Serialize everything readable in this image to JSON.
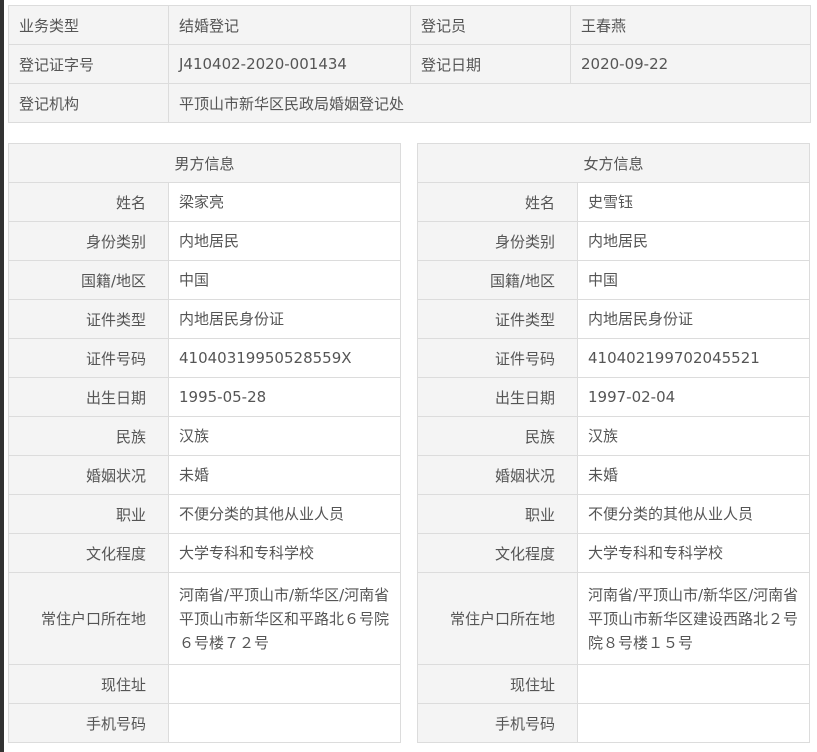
{
  "summary": {
    "business_type_label": "业务类型",
    "business_type": "结婚登记",
    "registrar_label": "登记员",
    "registrar": "王春燕",
    "cert_no_label": "登记证字号",
    "cert_no": "J410402-2020-001434",
    "reg_date_label": "登记日期",
    "reg_date": "2020-09-22",
    "agency_label": "登记机构",
    "agency": "平顶山市新华区民政局婚姻登记处"
  },
  "labels": [
    "姓名",
    "身份类别",
    "国籍/地区",
    "证件类型",
    "证件号码",
    "出生日期",
    "民族",
    "婚姻状况",
    "职业",
    "文化程度",
    "常住户口所在地",
    "现住址",
    "手机号码"
  ],
  "male": {
    "title": "男方信息",
    "values": [
      "梁家亮",
      "内地居民",
      "中国",
      "内地居民身份证",
      "41040319950528559X",
      "1995-05-28",
      "汉族",
      "未婚",
      "不便分类的其他从业人员",
      "大学专科和专科学校",
      "河南省/平顶山市/新华区/河南省平顶山市新华区和平路北６号院６号楼７２号",
      "",
      ""
    ]
  },
  "female": {
    "title": "女方信息",
    "values": [
      "史雪钰",
      "内地居民",
      "中国",
      "内地居民身份证",
      "410402199702045521",
      "1997-02-04",
      "汉族",
      "未婚",
      "不便分类的其他从业人员",
      "大学专科和专科学校",
      "河南省/平顶山市/新华区/河南省平顶山市新华区建设西路北２号院８号楼１５号",
      "",
      ""
    ]
  }
}
